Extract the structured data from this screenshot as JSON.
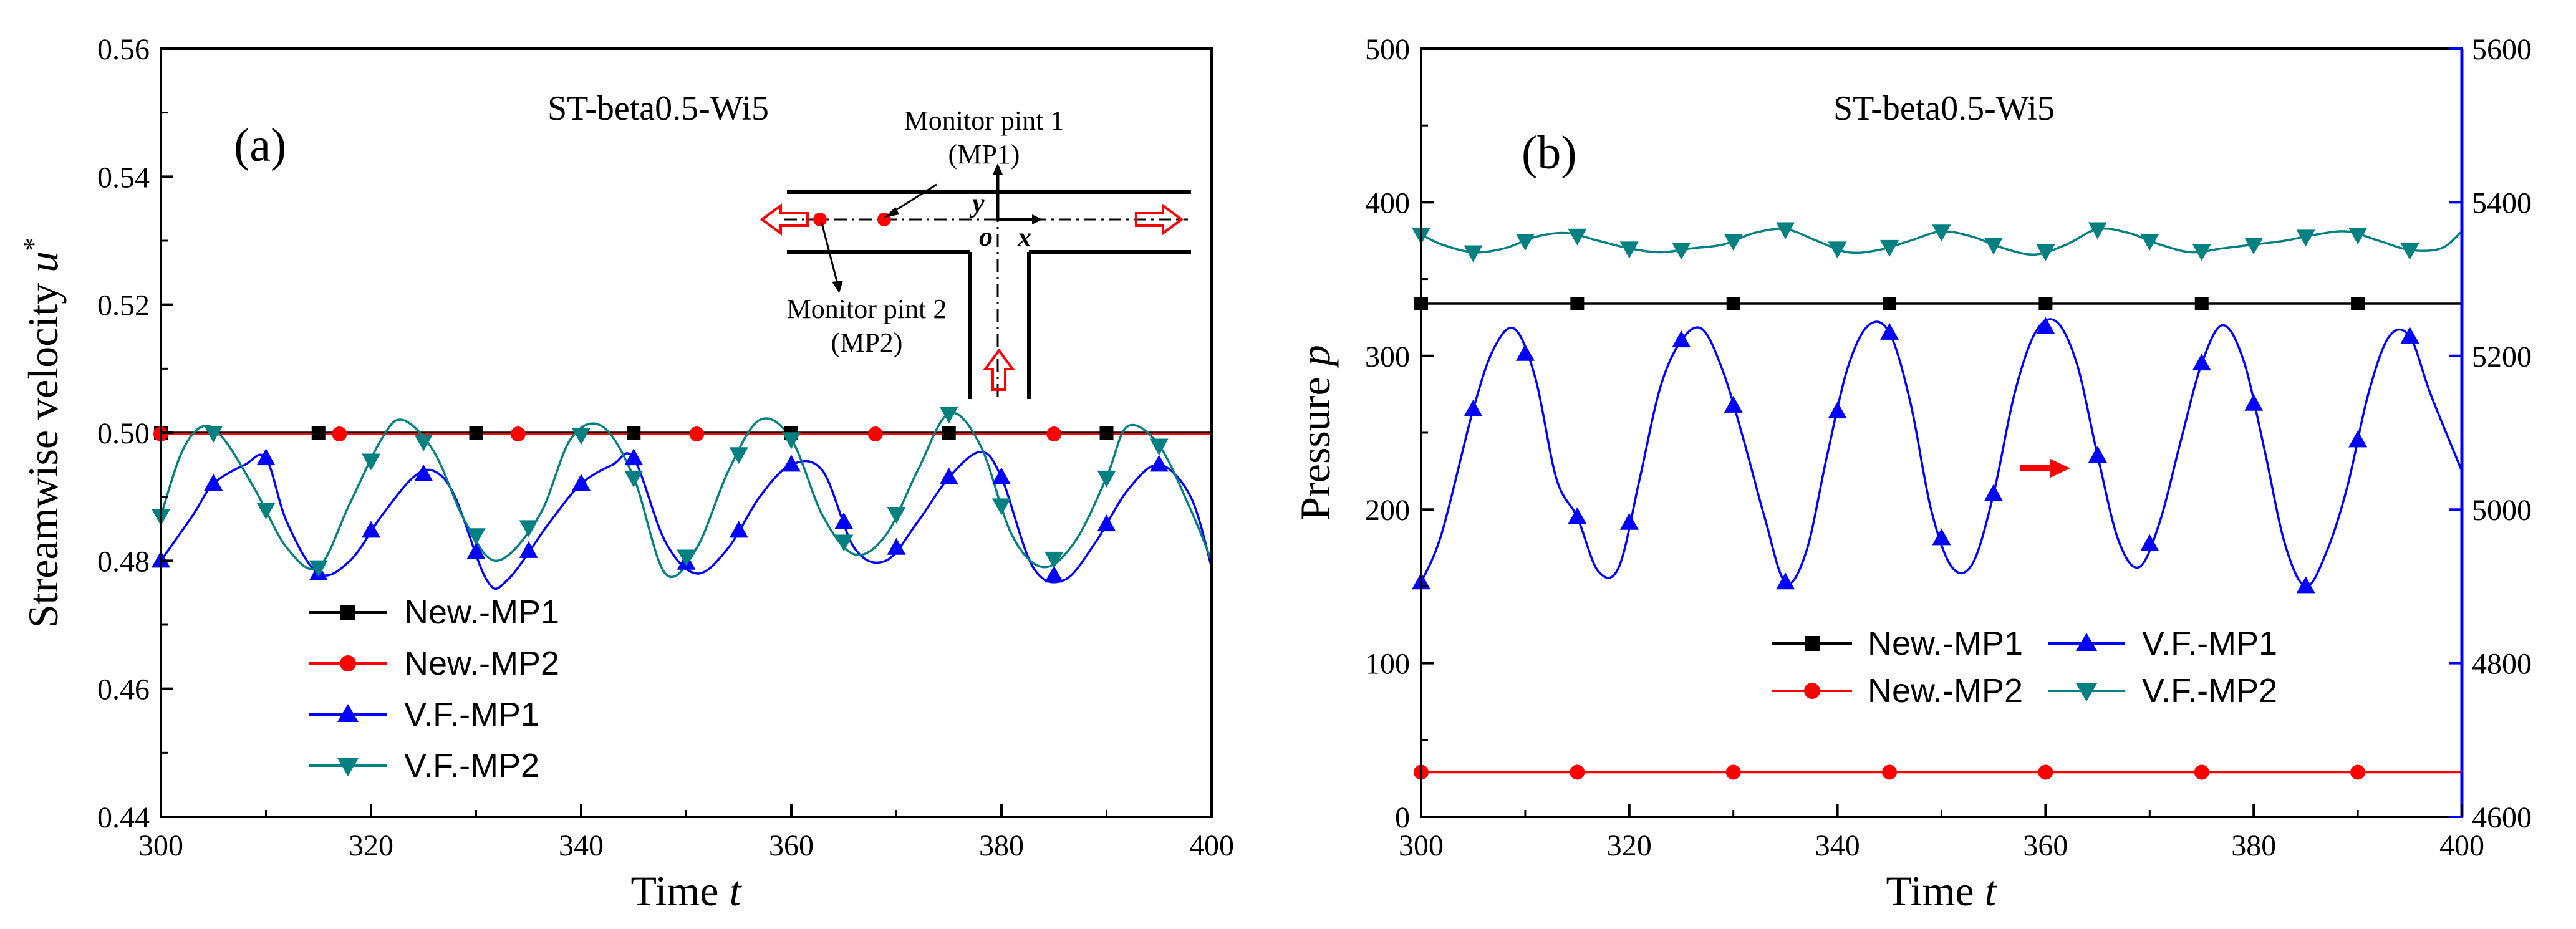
{
  "chart_data": [
    {
      "type": "line",
      "panel_label": "(a)",
      "title": "ST-beta0.5-Wi5",
      "xlabel": "Time t",
      "ylabel": "Streamwise velocity u*",
      "xlim": [
        300,
        400
      ],
      "ylim": [
        0.44,
        0.56
      ],
      "xticks": [
        300,
        320,
        340,
        360,
        380,
        400
      ],
      "yticks": [
        0.44,
        0.46,
        0.48,
        0.5,
        0.52,
        0.54,
        0.56
      ],
      "xtick_labels": [
        "300",
        "320",
        "340",
        "360",
        "380",
        "400"
      ],
      "ytick_labels": [
        "0.44",
        "0.46",
        "0.48",
        "0.50",
        "0.52",
        "0.54",
        "0.56"
      ],
      "legend_position": "lower-left",
      "inset": {
        "monitor_1_line1": "Monitor pint 1",
        "monitor_1_line2": "(MP1)",
        "monitor_2_line1": "Monitor pint 2",
        "monitor_2_line2": "(MP2)",
        "axis_x": "x",
        "axis_y": "y",
        "origin": "o"
      },
      "series": [
        {
          "name": "New.-MP1",
          "color": "#000000",
          "marker": "square",
          "x": [
            300,
            400
          ],
          "y": [
            0.5,
            0.5
          ],
          "marker_x": [
            300,
            315,
            330,
            345,
            360,
            375,
            390
          ]
        },
        {
          "name": "New.-MP2",
          "color": "#ff0000",
          "marker": "circle",
          "x": [
            300,
            400
          ],
          "y": [
            0.4998,
            0.4998
          ],
          "marker_x": [
            300,
            317,
            334,
            351,
            368,
            385
          ]
        },
        {
          "name": "V.F.-MP1",
          "color": "#0000ff",
          "marker": "triangle-up",
          "x": [
            300,
            303,
            305,
            308,
            310,
            312,
            315,
            318,
            321,
            324,
            326,
            328,
            331,
            333,
            337,
            340,
            343,
            345,
            348,
            351,
            354,
            357,
            360,
            363,
            366,
            369,
            372,
            375,
            378,
            380,
            383,
            386,
            389,
            392,
            395,
            398,
            400
          ],
          "y": [
            0.48,
            0.487,
            0.492,
            0.495,
            0.496,
            0.486,
            0.478,
            0.48,
            0.487,
            0.493,
            0.494,
            0.49,
            0.477,
            0.477,
            0.486,
            0.492,
            0.495,
            0.496,
            0.483,
            0.478,
            0.482,
            0.49,
            0.495,
            0.494,
            0.482,
            0.48,
            0.486,
            0.493,
            0.497,
            0.493,
            0.479,
            0.477,
            0.483,
            0.491,
            0.495,
            0.49,
            0.479
          ],
          "marker_x": [
            300,
            305,
            310,
            315,
            320,
            325,
            330,
            335,
            340,
            345,
            350,
            355,
            360,
            365,
            370,
            375,
            380,
            385,
            390,
            395
          ]
        },
        {
          "name": "V.F.-MP2",
          "color": "#008080",
          "marker": "triangle-down",
          "x": [
            300,
            302,
            304,
            306,
            309,
            312,
            315,
            318,
            321,
            323,
            326,
            329,
            332,
            336,
            339,
            342,
            345,
            348,
            351,
            354,
            357,
            360,
            363,
            366,
            369,
            372,
            375,
            378,
            381,
            384,
            387,
            390,
            392,
            395,
            398,
            400
          ],
          "y": [
            0.487,
            0.497,
            0.501,
            0.499,
            0.491,
            0.482,
            0.479,
            0.489,
            0.499,
            0.502,
            0.497,
            0.486,
            0.48,
            0.487,
            0.499,
            0.501,
            0.493,
            0.478,
            0.482,
            0.494,
            0.502,
            0.499,
            0.487,
            0.481,
            0.484,
            0.494,
            0.503,
            0.498,
            0.484,
            0.479,
            0.483,
            0.493,
            0.501,
            0.498,
            0.488,
            0.48
          ],
          "marker_x": [
            300,
            305,
            310,
            315,
            320,
            325,
            330,
            335,
            340,
            345,
            350,
            355,
            360,
            365,
            370,
            375,
            380,
            385,
            390,
            395
          ]
        }
      ]
    },
    {
      "type": "line",
      "panel_label": "(b)",
      "title": "ST-beta0.5-Wi5",
      "xlabel": "Time t",
      "ylabel": "Pressure p",
      "xlim": [
        300,
        400
      ],
      "ylim": [
        0,
        500
      ],
      "ylim_right": [
        4600,
        5600
      ],
      "xticks": [
        300,
        320,
        340,
        360,
        380,
        400
      ],
      "yticks": [
        0,
        100,
        200,
        300,
        400,
        500
      ],
      "yticks_right": [
        4600,
        4800,
        5000,
        5200,
        5400,
        5600
      ],
      "xtick_labels": [
        "300",
        "320",
        "340",
        "360",
        "380",
        "400"
      ],
      "ytick_labels": [
        "0",
        "100",
        "200",
        "300",
        "400",
        "500"
      ],
      "ytick_labels_right": [
        "4600",
        "4800",
        "5000",
        "5200",
        "5400",
        "5600"
      ],
      "legend_position": "lower-center",
      "annotation": "red arrow pointing right (V.F.-MP1 on right axis)",
      "series": [
        {
          "name": "New.-MP1",
          "color": "#000000",
          "marker": "square",
          "axis": "left",
          "x": [
            300,
            400
          ],
          "y": [
            334,
            334
          ],
          "marker_x": [
            300,
            315,
            330,
            345,
            360,
            375,
            390
          ]
        },
        {
          "name": "New.-MP2",
          "color": "#ff0000",
          "marker": "circle",
          "axis": "left",
          "x": [
            300,
            400
          ],
          "y": [
            29,
            29
          ],
          "marker_x": [
            300,
            315,
            330,
            345,
            360,
            375,
            390
          ]
        },
        {
          "name": "V.F.-MP1",
          "color": "#0000ff",
          "marker": "triangle-up",
          "axis": "right",
          "x": [
            300,
            302,
            305,
            307,
            309,
            311,
            313,
            315,
            317,
            319,
            321,
            323,
            325,
            327,
            329,
            331,
            333,
            335,
            337,
            339,
            341,
            343,
            345,
            347,
            349,
            351,
            353,
            355,
            357,
            359,
            361,
            363,
            365,
            367,
            369,
            371,
            373,
            375,
            377,
            379,
            381,
            383,
            385,
            387,
            389,
            391,
            393,
            395,
            397,
            400
          ],
          "y": [
            4905,
            4970,
            5130,
            5210,
            5235,
            5170,
            5040,
            4990,
            4920,
            4925,
            5040,
            5160,
            5220,
            5235,
            5180,
            5090,
            4990,
            4905,
            4945,
            5070,
            5185,
            5240,
            5230,
            5140,
            5000,
            4925,
            4930,
            5020,
            5150,
            5230,
            5245,
            5190,
            5070,
            4960,
            4925,
            4985,
            5090,
            5190,
            5240,
            5195,
            5080,
            4955,
            4900,
            4945,
            5030,
            5150,
            5225,
            5225,
            5150,
            5050
          ],
          "marker_x": [
            300,
            305,
            310,
            315,
            320,
            325,
            330,
            335,
            340,
            345,
            350,
            355,
            360,
            365,
            370,
            375,
            380,
            385,
            390,
            395
          ]
        },
        {
          "name": "V.F.-MP2",
          "color": "#008080",
          "marker": "triangle-down",
          "axis": "right",
          "x": [
            300,
            302,
            305,
            308,
            311,
            314,
            317,
            320,
            323,
            326,
            329,
            332,
            335,
            338,
            341,
            344,
            347,
            350,
            353,
            356,
            359,
            362,
            365,
            368,
            371,
            374,
            377,
            380,
            383,
            386,
            389,
            392,
            395,
            398,
            400
          ],
          "y": [
            5358,
            5345,
            5335,
            5340,
            5355,
            5360,
            5350,
            5340,
            5335,
            5340,
            5345,
            5360,
            5365,
            5350,
            5335,
            5338,
            5350,
            5362,
            5355,
            5340,
            5332,
            5345,
            5365,
            5360,
            5345,
            5335,
            5340,
            5345,
            5350,
            5358,
            5362,
            5350,
            5338,
            5340,
            5362
          ],
          "marker_x": [
            300,
            305,
            310,
            315,
            320,
            325,
            330,
            335,
            340,
            345,
            350,
            355,
            360,
            365,
            370,
            375,
            380,
            385,
            390,
            395
          ]
        }
      ]
    }
  ]
}
